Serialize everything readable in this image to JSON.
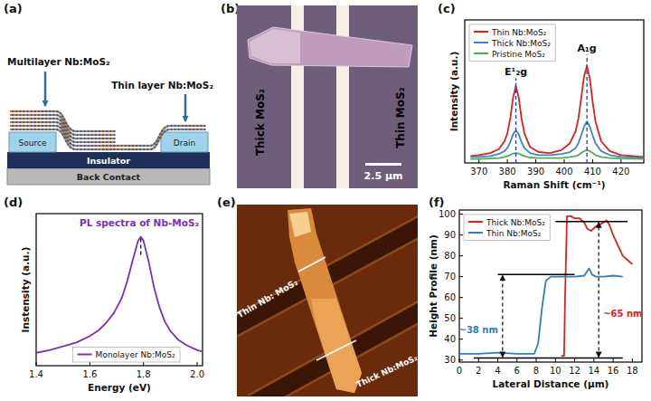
{
  "chart_data": [
    {
      "type": "line",
      "panel": "(c)",
      "x_label": "Raman Shift (cm⁻¹)",
      "y_label": "Intensity (a.u.)",
      "x": [
        367,
        370,
        374,
        377,
        379,
        380,
        381,
        382,
        383,
        384,
        385,
        386,
        388,
        391,
        395,
        399,
        402,
        404,
        405,
        406,
        407,
        408,
        409,
        410,
        411,
        413,
        416,
        420,
        428
      ],
      "series": [
        {
          "name": "Thin Nb:MoS₂",
          "color": "#e0201b",
          "values": [
            0.07,
            0.08,
            0.1,
            0.14,
            0.22,
            0.3,
            0.45,
            0.66,
            0.78,
            0.66,
            0.45,
            0.3,
            0.16,
            0.11,
            0.1,
            0.13,
            0.2,
            0.32,
            0.45,
            0.66,
            0.88,
            0.98,
            0.86,
            0.62,
            0.42,
            0.22,
            0.12,
            0.08,
            0.06
          ]
        },
        {
          "name": "Thick Nb:MoS₂",
          "color": "#3a86c8",
          "values": [
            0.06,
            0.06,
            0.07,
            0.09,
            0.12,
            0.15,
            0.21,
            0.29,
            0.33,
            0.29,
            0.21,
            0.15,
            0.1,
            0.08,
            0.08,
            0.09,
            0.11,
            0.15,
            0.2,
            0.28,
            0.37,
            0.42,
            0.37,
            0.28,
            0.2,
            0.12,
            0.08,
            0.06,
            0.05
          ]
        },
        {
          "name": "Pristine MoS₂",
          "color": "#4caf50",
          "values": [
            0.04,
            0.04,
            0.045,
            0.05,
            0.06,
            0.07,
            0.08,
            0.095,
            0.1,
            0.095,
            0.08,
            0.07,
            0.055,
            0.05,
            0.05,
            0.05,
            0.06,
            0.07,
            0.08,
            0.1,
            0.12,
            0.13,
            0.12,
            0.1,
            0.08,
            0.06,
            0.05,
            0.045,
            0.04
          ]
        }
      ],
      "xlim": [
        365,
        428
      ],
      "xticks": [
        370,
        380,
        390,
        400,
        410,
        420
      ],
      "ylim": [
        0,
        1.45
      ],
      "tick_labels": "x",
      "legend": "upper left",
      "annotations": [
        {
          "text": "E¹₂g",
          "x": 383,
          "y": 0.86
        },
        {
          "text": "A₁g",
          "x": 408,
          "y": 1.1
        }
      ]
    },
    {
      "type": "line",
      "panel": "(d)",
      "title": "PL spectra of Nb-MoS₂",
      "x_label": "Energy (eV)",
      "y_label": "Instensity (a.u.)",
      "x": [
        1.4,
        1.45,
        1.5,
        1.55,
        1.6,
        1.63,
        1.66,
        1.69,
        1.72,
        1.74,
        1.76,
        1.78,
        1.79,
        1.8,
        1.82,
        1.84,
        1.86,
        1.88,
        1.9,
        1.93,
        1.96,
        2.0,
        2.02
      ],
      "series": [
        {
          "name": "Monolayer Nb:MoS₂",
          "color": "#7b2fbe",
          "values": [
            0.1,
            0.12,
            0.15,
            0.18,
            0.23,
            0.27,
            0.33,
            0.41,
            0.53,
            0.66,
            0.82,
            0.97,
            1.0,
            0.97,
            0.8,
            0.6,
            0.45,
            0.34,
            0.27,
            0.2,
            0.16,
            0.12,
            0.11
          ]
        }
      ],
      "xlim": [
        1.4,
        2.02
      ],
      "xticks": [
        1.4,
        1.6,
        1.8,
        {
          "value": 2,
          "label": "2.0"
        }
      ],
      "ylim": [
        0,
        1.18
      ],
      "tick_labels": "x",
      "legend": "lower right",
      "annotations": [
        {
          "x": 1.79,
          "y1": 0.86,
          "y2": 1.0
        }
      ]
    },
    {
      "type": "line",
      "panel": "(f)",
      "x_label": "Lateral Distance (µm)",
      "y_label": "Height Profile (nm)",
      "series": [
        {
          "name": "Thick Nb:MoS₂",
          "color": "#e0201b",
          "x": [
            10.6,
            10.9,
            11.0,
            11.2,
            11.6,
            12.0,
            12.5,
            13.0,
            13.3,
            13.7,
            14.2,
            14.6,
            15.0,
            15.3,
            15.6,
            16.0,
            16.5,
            17.0,
            17.5,
            18.0
          ],
          "values": [
            32,
            32,
            60,
            99,
            99,
            98,
            98,
            96,
            93,
            92,
            94,
            95,
            96,
            97,
            95,
            90,
            85,
            80,
            78,
            76
          ]
        },
        {
          "name": "Thin Nb:MoS₂",
          "color": "#2f7fc0",
          "x": [
            0,
            2,
            4,
            6,
            7,
            7.8,
            8.2,
            8.6,
            9.0,
            9.5,
            10,
            11,
            12,
            13,
            13.5,
            13.8,
            14.2,
            15,
            16,
            17
          ],
          "values": [
            33,
            33,
            33.5,
            33,
            33,
            33,
            38,
            55,
            68,
            70,
            70,
            70,
            70,
            70.5,
            74,
            71,
            70,
            70,
            70.5,
            70
          ]
        }
      ],
      "xlim": [
        0,
        19
      ],
      "xticks": [
        0,
        2,
        4,
        6,
        8,
        10,
        12,
        14,
        16,
        18
      ],
      "ylim": [
        29,
        102
      ],
      "yticks": [
        30,
        40,
        50,
        60,
        70,
        80,
        90,
        100
      ],
      "legend": "upper left",
      "reference_lines": [
        {
          "y": 31,
          "x1": 1.5,
          "x2": 17
        },
        {
          "y": 71,
          "x1": 4,
          "x2": 12
        },
        {
          "y": 96.5,
          "x1": 10,
          "x2": 17.5
        }
      ],
      "annotations": [
        {
          "text": "~38 nm",
          "x": 4.5,
          "y1": 31,
          "y2": 71
        },
        {
          "text": "~65 nm",
          "x": 14.5,
          "y1": 31,
          "y2": 96.5
        }
      ]
    }
  ],
  "diagrams": [
    {
      "panel": "(a)",
      "labels": {
        "multilayer": "Multilayer Nb:MoS₂",
        "thin_layer": "Thin layer Nb:MoS₂",
        "source": "Source",
        "drain": "Drain",
        "insulator": "Insulator",
        "back_contact": "Back Contact"
      }
    },
    {
      "panel": "(b)",
      "labels": {
        "thick": "Thick MoS₂",
        "thin": "Thin MoS₂",
        "scale_bar": "2.5 µm"
      }
    },
    {
      "panel": "(e)",
      "labels": {
        "thin": "Thin Nb: MoS₂",
        "thick": "Thick Nb:MoS₂"
      }
    }
  ]
}
